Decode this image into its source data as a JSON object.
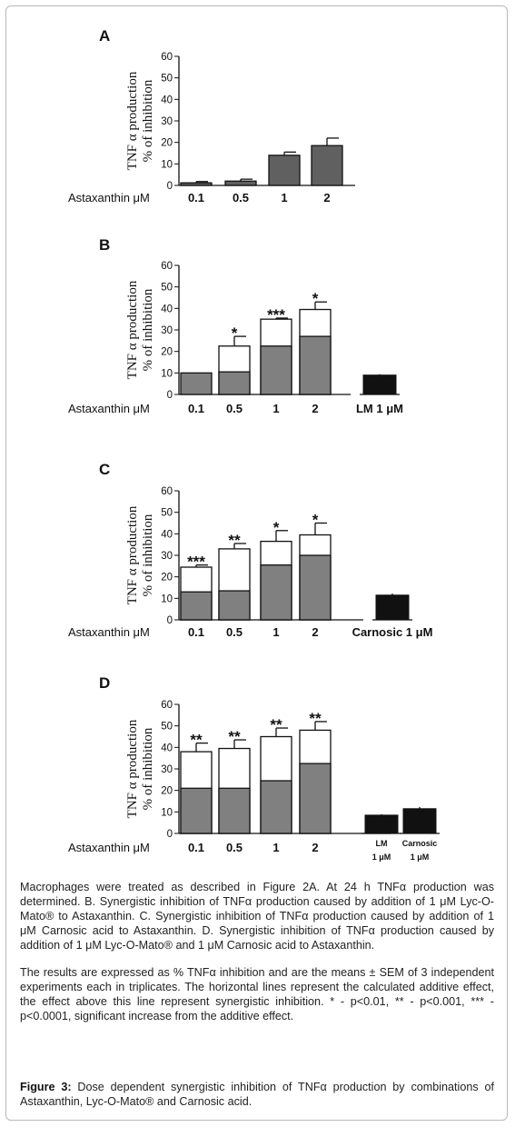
{
  "chart_data": [
    {
      "type": "bar",
      "panel": "A",
      "ylabel": [
        "TNF α production",
        "% of inhibition"
      ],
      "xlabel": "Astaxanthin μM",
      "ylim": [
        0,
        60
      ],
      "yticks": [
        0,
        10,
        20,
        30,
        40,
        50,
        60
      ],
      "categories": [
        "0.1",
        "0.5",
        "1",
        "2"
      ],
      "series": [
        {
          "values": [
            1.2,
            2.0,
            14.0,
            18.5
          ],
          "errors": [
            0.6,
            0.9,
            1.5,
            3.5
          ],
          "color": "#606060"
        }
      ],
      "significance": [
        "",
        "",
        "",
        ""
      ]
    },
    {
      "type": "bar",
      "panel": "B",
      "ylabel": [
        "TNF α production",
        "% of inhibition"
      ],
      "xlabel": "Astaxanthin μM",
      "ylim": [
        0,
        60
      ],
      "yticks": [
        0,
        10,
        20,
        30,
        40,
        50,
        60
      ],
      "categories": [
        "0.1",
        "0.5",
        "1",
        "2",
        "LM 1 μM"
      ],
      "series": [
        {
          "values": [
            10,
            10.5,
            22.5,
            27,
            0
          ],
          "color": "#808080"
        },
        {
          "values": [
            0,
            22.5,
            35,
            39.5,
            0
          ],
          "errors": [
            0,
            4.5,
            0.5,
            3.5,
            0
          ],
          "color": "#ffffff"
        }
      ],
      "reference": {
        "category": "LM 1 μM",
        "value": 9,
        "error": 0.4,
        "color": "#111111"
      },
      "significance": [
        "",
        "*",
        "***",
        "*",
        ""
      ]
    },
    {
      "type": "bar",
      "panel": "C",
      "ylabel": [
        "TNF α production",
        "% of inhibition"
      ],
      "xlabel": "Astaxanthin μM",
      "ylim": [
        0,
        60
      ],
      "yticks": [
        0,
        10,
        20,
        30,
        40,
        50,
        60
      ],
      "categories": [
        "0.1",
        "0.5",
        "1",
        "2",
        "Carnosic 1 μM"
      ],
      "series": [
        {
          "values": [
            13,
            13.5,
            25.5,
            30,
            0
          ],
          "color": "#808080"
        },
        {
          "values": [
            24.5,
            33,
            36.5,
            39.5,
            0
          ],
          "errors": [
            1.0,
            2.5,
            5.0,
            5.5,
            0
          ],
          "color": "#ffffff"
        }
      ],
      "reference": {
        "category": "Carnosic 1 μM",
        "value": 11.5,
        "error": 0.7,
        "color": "#111111"
      },
      "significance": [
        "***",
        "**",
        "*",
        "*",
        ""
      ]
    },
    {
      "type": "bar",
      "panel": "D",
      "ylabel": [
        "TNF α production",
        "% of inhibition"
      ],
      "xlabel": "Astaxanthin μM",
      "ylim": [
        0,
        60
      ],
      "yticks": [
        0,
        10,
        20,
        30,
        40,
        50,
        60
      ],
      "categories": [
        "0.1",
        "0.5",
        "1",
        "2",
        "LM 1 μM",
        "Carnosic 1 μM"
      ],
      "category_lines": [
        [
          "0.1"
        ],
        [
          "0.5"
        ],
        [
          "1"
        ],
        [
          "2"
        ],
        [
          "LM",
          "1 μM"
        ],
        [
          "Carnosic",
          "1 μM"
        ]
      ],
      "series": [
        {
          "values": [
            21,
            21,
            24.5,
            32.5,
            0,
            0
          ],
          "color": "#808080"
        },
        {
          "values": [
            38,
            39.5,
            45,
            48,
            0,
            0
          ],
          "errors": [
            4.0,
            4.0,
            4.0,
            4.0,
            0,
            0
          ],
          "color": "#ffffff"
        }
      ],
      "reference": [
        {
          "category": "LM 1 μM",
          "value": 8.5,
          "error": 0.4,
          "color": "#111111"
        },
        {
          "category": "Carnosic 1 μM",
          "value": 11.5,
          "error": 0.8,
          "color": "#111111"
        }
      ],
      "significance": [
        "**",
        "**",
        "**",
        "**",
        "",
        ""
      ]
    }
  ],
  "caption": {
    "p1": "Macrophages were treated as described in Figure 2A. At 24 h TNFα production was determined. B. Synergistic inhibition of TNFα production caused by addition of 1 μM Lyc-O-Mato® to Astaxanthin. C. Synergistic inhibition of TNFα production caused by addition of 1 μM Carnosic acid to Astaxanthin. D. Synergistic inhibition of TNFα production caused by addition of 1 μM Lyc-O-Mato® and 1 μM Carnosic acid to Astaxanthin.",
    "p2": "The results are expressed as % TNFα inhibition and are the means ± SEM of 3 independent experiments each in triplicates. The horizontal lines represent the calculated additive effect, the effect above this line represent synergistic inhibition. * - p<0.01, ** - p<0.001, *** - p<0.0001, significant increase from the additive effect.",
    "fig_label": "Figure 3:",
    "fig_text": "Dose dependent synergistic inhibition of TNFα production by combinations of Astaxanthin, Lyc-O-Mato® and Carnosic acid."
  }
}
